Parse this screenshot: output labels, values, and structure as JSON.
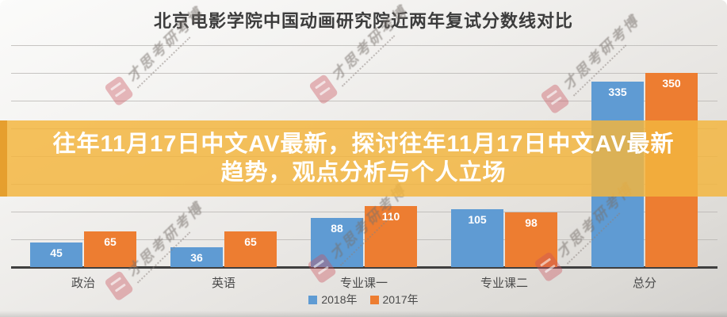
{
  "page": {
    "title": "北京电影学院中国动画研究院近两年复试分数线对比"
  },
  "banner": {
    "line1": "往年11月17日中文AV最新，探讨往年11月17日中文AV最新",
    "line2": "趋势，观点分析与个人立场",
    "bg_color": "#F3B53E",
    "text_color": "#FFFFFF"
  },
  "watermark": {
    "text": "才思考研考博",
    "seal_color": "#C9505C"
  },
  "chart_data": {
    "type": "bar",
    "title": "北京电影学院中国动画研究院近两年复试分数线对比",
    "categories": [
      "政治",
      "英语",
      "专业课一",
      "专业课二",
      "总分"
    ],
    "series": [
      {
        "name": "2018年",
        "color": "#5F9BD3",
        "values": [
          45,
          36,
          88,
          105,
          335
        ]
      },
      {
        "name": "2017年",
        "color": "#ED7D31",
        "values": [
          65,
          65,
          110,
          98,
          350
        ]
      }
    ],
    "xlabel": "",
    "ylabel": "",
    "ylim": [
      0,
      400
    ],
    "gridline_step": 50,
    "grid": true,
    "legend_position": "bottom",
    "value_labels": true
  }
}
